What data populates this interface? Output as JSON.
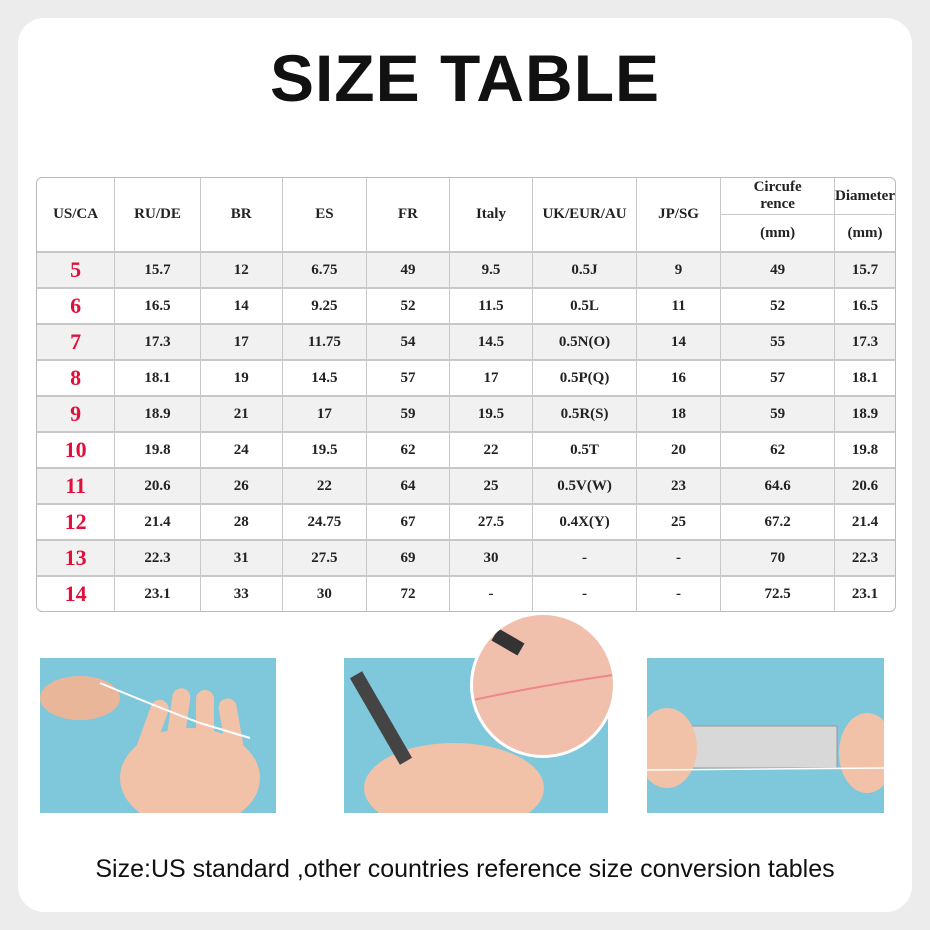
{
  "title": "SIZE TABLE",
  "table": {
    "headers": [
      "US/CA",
      "RU/DE",
      "BR",
      "ES",
      "FR",
      "Italy",
      "UK/EUR/AU",
      "JP/SG",
      "Circufe rence",
      "Diameter"
    ],
    "units": [
      "(mm)",
      "(mm)"
    ],
    "rows": [
      [
        "5",
        "15.7",
        "12",
        "6.75",
        "49",
        "9.5",
        "0.5J",
        "9",
        "49",
        "15.7"
      ],
      [
        "6",
        "16.5",
        "14",
        "9.25",
        "52",
        "11.5",
        "0.5L",
        "11",
        "52",
        "16.5"
      ],
      [
        "7",
        "17.3",
        "17",
        "11.75",
        "54",
        "14.5",
        "0.5N(O)",
        "14",
        "55",
        "17.3"
      ],
      [
        "8",
        "18.1",
        "19",
        "14.5",
        "57",
        "17",
        "0.5P(Q)",
        "16",
        "57",
        "18.1"
      ],
      [
        "9",
        "18.9",
        "21",
        "17",
        "59",
        "19.5",
        "0.5R(S)",
        "18",
        "59",
        "18.9"
      ],
      [
        "10",
        "19.8",
        "24",
        "19.5",
        "62",
        "22",
        "0.5T",
        "20",
        "62",
        "19.8"
      ],
      [
        "11",
        "20.6",
        "26",
        "22",
        "64",
        "25",
        "0.5V(W)",
        "23",
        "64.6",
        "20.6"
      ],
      [
        "12",
        "21.4",
        "28",
        "24.75",
        "67",
        "27.5",
        "0.4X(Y)",
        "25",
        "67.2",
        "21.4"
      ],
      [
        "13",
        "22.3",
        "31",
        "27.5",
        "69",
        "30",
        "-",
        "-",
        "70",
        "22.3"
      ],
      [
        "14",
        "23.1",
        "33",
        "30",
        "72",
        "-",
        "-",
        "-",
        "72.5",
        "23.1"
      ]
    ]
  },
  "colors": {
    "us_size": "#e0103a",
    "photo_bg": "#7fc8dc"
  },
  "footer": "Size:US standard ,other countries reference size conversion tables"
}
